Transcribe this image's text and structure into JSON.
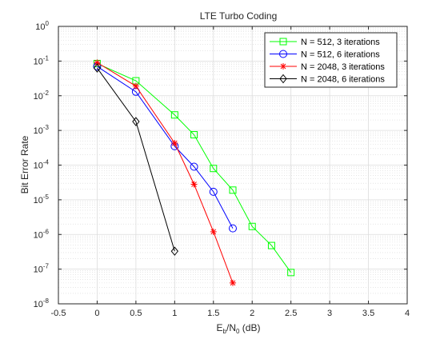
{
  "chart_data": {
    "type": "line",
    "title": "LTE Turbo Coding",
    "xlabel": {
      "main": "E",
      "sub1": "b",
      "mid": "/N",
      "sub2": "0",
      "tail": " (dB)"
    },
    "ylabel": "Bit Error Rate",
    "x_scale": "linear",
    "y_scale": "log",
    "xlim": [
      -0.5,
      4
    ],
    "ylim": [
      1e-08,
      1
    ],
    "x_ticks": [
      -0.5,
      0,
      0.5,
      1,
      1.5,
      2,
      2.5,
      3,
      3.5,
      4
    ],
    "x_tick_labels": [
      "-0.5",
      "0",
      "0.5",
      "1",
      "1.5",
      "2",
      "2.5",
      "3",
      "3.5",
      "4"
    ],
    "y_tick_exponents": [
      0,
      -1,
      -2,
      -3,
      -4,
      -5,
      -6,
      -7,
      -8
    ],
    "y_tick_base": "10",
    "grid": true,
    "minor_grid": true,
    "legend_position": "top-right",
    "series": [
      {
        "name": "N = 512, 3 iterations",
        "color": "#00ff00",
        "marker": "square",
        "x": [
          0,
          0.5,
          1,
          1.25,
          1.5,
          1.75,
          2,
          2.25,
          2.5
        ],
        "y": [
          0.085,
          0.027,
          0.0028,
          0.00075,
          8e-05,
          1.9e-05,
          1.7e-06,
          4.8e-07,
          8e-08
        ]
      },
      {
        "name": "N = 512, 6 iterations",
        "color": "#0000ff",
        "marker": "circle",
        "x": [
          0,
          0.5,
          1,
          1.25,
          1.5,
          1.75
        ],
        "y": [
          0.07,
          0.013,
          0.00035,
          9e-05,
          1.7e-05,
          1.5e-06
        ]
      },
      {
        "name": "N = 2048, 3 iterations",
        "color": "#ff0000",
        "marker": "asterisk",
        "x": [
          0,
          0.5,
          1,
          1.25,
          1.5,
          1.75
        ],
        "y": [
          0.09,
          0.019,
          0.00043,
          2.8e-05,
          1.2e-06,
          4e-08
        ]
      },
      {
        "name": "N = 2048, 6 iterations",
        "color": "#000000",
        "marker": "diamond",
        "x": [
          0,
          0.5,
          1
        ],
        "y": [
          0.063,
          0.0018,
          3.3e-07
        ]
      }
    ]
  }
}
